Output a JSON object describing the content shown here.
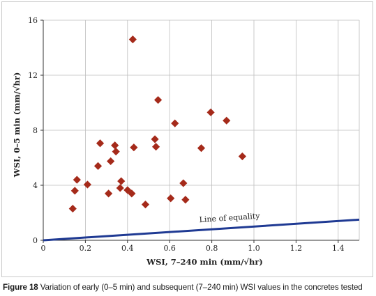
{
  "caption": {
    "figure_label": "Figure 18",
    "text": "Variation of early (0–5 min) and subsequent (7–240 min) WSI values in the concretes tested"
  },
  "chart_data": {
    "type": "scatter",
    "xlabel": "WSI, 7–240 min (mm/√hr)",
    "ylabel": "WSI, 0–5 min (mm/√hr)",
    "xlim": [
      0,
      1.5
    ],
    "ylim": [
      0,
      16
    ],
    "xticks": [
      0,
      0.2,
      0.4,
      0.6,
      0.8,
      1.0,
      1.2,
      1.4
    ],
    "xtick_labels": [
      "0",
      "0.2",
      "0.4",
      "0.6",
      "0.8",
      "1.0",
      "1.2",
      "1.4"
    ],
    "yticks": [
      0,
      4,
      8,
      12,
      16
    ],
    "ytick_labels": [
      "0",
      "4",
      "8",
      "12",
      "16"
    ],
    "grid": true,
    "marker_color": "#a52a1a",
    "equality_line_color": "#1f3a93",
    "annotation": "Line of equality",
    "equality_line": [
      [
        0,
        0
      ],
      [
        1.5,
        1.5
      ]
    ],
    "points": [
      {
        "x": 0.14,
        "y": 2.3
      },
      {
        "x": 0.15,
        "y": 3.6
      },
      {
        "x": 0.16,
        "y": 4.4
      },
      {
        "x": 0.21,
        "y": 4.05
      },
      {
        "x": 0.26,
        "y": 5.4
      },
      {
        "x": 0.27,
        "y": 7.05
      },
      {
        "x": 0.31,
        "y": 3.4
      },
      {
        "x": 0.32,
        "y": 5.75
      },
      {
        "x": 0.34,
        "y": 6.9
      },
      {
        "x": 0.345,
        "y": 6.45
      },
      {
        "x": 0.365,
        "y": 3.8
      },
      {
        "x": 0.37,
        "y": 4.3
      },
      {
        "x": 0.4,
        "y": 3.65
      },
      {
        "x": 0.42,
        "y": 3.4
      },
      {
        "x": 0.425,
        "y": 14.6
      },
      {
        "x": 0.43,
        "y": 6.75
      },
      {
        "x": 0.485,
        "y": 2.6
      },
      {
        "x": 0.53,
        "y": 7.35
      },
      {
        "x": 0.535,
        "y": 6.8
      },
      {
        "x": 0.545,
        "y": 10.2
      },
      {
        "x": 0.605,
        "y": 3.05
      },
      {
        "x": 0.625,
        "y": 8.5
      },
      {
        "x": 0.665,
        "y": 4.15
      },
      {
        "x": 0.675,
        "y": 2.95
      },
      {
        "x": 0.75,
        "y": 6.7
      },
      {
        "x": 0.795,
        "y": 9.3
      },
      {
        "x": 0.87,
        "y": 8.7
      },
      {
        "x": 0.945,
        "y": 6.1
      }
    ]
  }
}
